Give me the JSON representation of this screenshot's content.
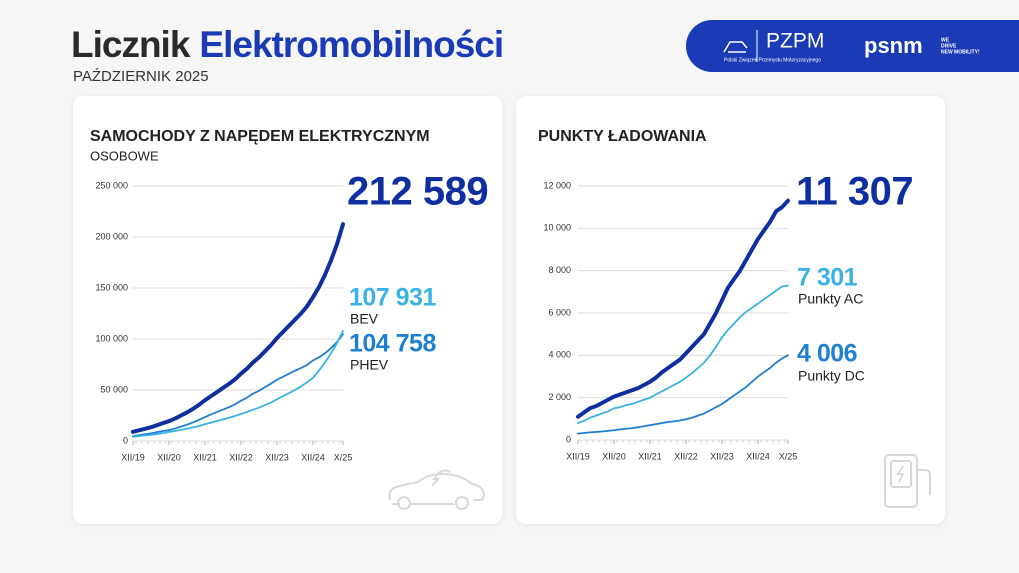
{
  "header": {
    "title_1": "Licznik",
    "title_2": "Elektromobilności",
    "date": "PAŹDZIERNIK 2025"
  },
  "logos": {
    "pzpm": "PZPM",
    "pzpm_full": "Polski Związek Przemysłu Motoryzacyjnego",
    "psnm": "psnm",
    "psnm_tagline": [
      "WE",
      "DRIVE",
      "NEW MOBILITY!"
    ]
  },
  "chart_data": [
    {
      "type": "line",
      "title": "SAMOCHODY Z NAPĘDEM ELEKTRYCZNYM",
      "subtitle": "OSOBOWE",
      "categories": [
        "XII/19",
        null,
        null,
        null,
        null,
        null,
        "XII/20",
        null,
        null,
        null,
        null,
        null,
        "XII/21",
        null,
        null,
        null,
        null,
        null,
        "XII/22",
        null,
        null,
        null,
        null,
        null,
        "XII/23",
        null,
        null,
        null,
        null,
        null,
        "XII/24",
        null,
        null,
        null,
        null,
        "X/25"
      ],
      "ylim": [
        0,
        250000
      ],
      "yticks": [
        0,
        {
          "value": 50000,
          "label": "50 000"
        },
        {
          "value": 100000,
          "label": "100 000"
        },
        {
          "value": 150000,
          "label": "150 000"
        },
        {
          "value": 200000,
          "label": "200 000"
        },
        {
          "value": 250000,
          "label": "250 000"
        }
      ],
      "grid": true,
      "series": [
        {
          "color": "#0f2fa0",
          "values": [
            9000,
            10500,
            12000,
            13500,
            15500,
            17500,
            19500,
            22000,
            25000,
            28000,
            31500,
            35500,
            40000,
            44000,
            48000,
            52000,
            56000,
            60500,
            66000,
            71000,
            77000,
            82000,
            88000,
            94000,
            101000,
            107000,
            113000,
            119000,
            125000,
            132000,
            141000,
            151000,
            163000,
            177000,
            193000,
            212589
          ],
          "value_labels": [
            null,
            null,
            null,
            null,
            null,
            null,
            null,
            null,
            null,
            null,
            null,
            null,
            null,
            null,
            null,
            null,
            null,
            null,
            null,
            null,
            null,
            null,
            null,
            null,
            null,
            null,
            null,
            null,
            null,
            null,
            null,
            null,
            null,
            null,
            null,
            "212 589"
          ]
        },
        {
          "name": "BEV",
          "color": "#3ab2e4",
          "values": [
            4200,
            4800,
            5400,
            6000,
            6800,
            7700,
            8800,
            9800,
            10900,
            12000,
            13300,
            14700,
            16500,
            18000,
            19600,
            21200,
            22800,
            24500,
            26500,
            28500,
            30600,
            32800,
            35200,
            37700,
            41000,
            44000,
            47000,
            50000,
            53500,
            57500,
            62000,
            69000,
            77000,
            86000,
            96000,
            107931
          ],
          "value_labels": [
            null,
            null,
            null,
            null,
            null,
            null,
            null,
            null,
            null,
            null,
            null,
            null,
            null,
            null,
            null,
            null,
            null,
            null,
            null,
            null,
            null,
            null,
            null,
            null,
            null,
            null,
            null,
            null,
            null,
            null,
            null,
            null,
            null,
            null,
            null,
            "107 931"
          ]
        },
        {
          "name": "PHEV",
          "color": "#1f7fd2",
          "values": [
            4800,
            5700,
            6600,
            7500,
            8700,
            9800,
            10700,
            12200,
            14100,
            16000,
            18200,
            20800,
            23500,
            26000,
            28400,
            30800,
            33200,
            36000,
            39500,
            42500,
            46400,
            49200,
            52800,
            56300,
            60000,
            63000,
            66000,
            69000,
            71500,
            74500,
            79000,
            82000,
            86000,
            91000,
            97000,
            104758
          ],
          "value_labels": [
            null,
            null,
            null,
            null,
            null,
            null,
            null,
            null,
            null,
            null,
            null,
            null,
            null,
            null,
            null,
            null,
            null,
            null,
            null,
            null,
            null,
            null,
            null,
            null,
            null,
            null,
            null,
            null,
            null,
            null,
            null,
            null,
            null,
            null,
            null,
            "104 758"
          ]
        }
      ]
    },
    {
      "type": "line",
      "title": "PUNKTY ŁADOWANIA",
      "categories": [
        "XII/19",
        null,
        null,
        null,
        null,
        null,
        "XII/20",
        null,
        null,
        null,
        null,
        null,
        "XII/21",
        null,
        null,
        null,
        null,
        null,
        "XII/22",
        null,
        null,
        null,
        null,
        null,
        "XII/23",
        null,
        null,
        null,
        null,
        null,
        "XII/24",
        null,
        null,
        null,
        null,
        "X/25"
      ],
      "ylim": [
        0,
        12000
      ],
      "yticks": [
        0,
        {
          "value": 2000,
          "label": "2 000"
        },
        {
          "value": 4000,
          "label": "4 000"
        },
        {
          "value": 6000,
          "label": "6 000"
        },
        {
          "value": 8000,
          "label": "8 000"
        },
        {
          "value": 10000,
          "label": "10 000"
        },
        {
          "value": 12000,
          "label": "12 000"
        }
      ],
      "grid": true,
      "series": [
        {
          "color": "#0f2fa0",
          "values": [
            1100,
            1300,
            1500,
            1600,
            1750,
            1900,
            2050,
            2150,
            2250,
            2350,
            2450,
            2600,
            2750,
            2950,
            3200,
            3400,
            3600,
            3800,
            4100,
            4400,
            4700,
            5000,
            5500,
            6000,
            6600,
            7200,
            7600,
            8000,
            8500,
            9000,
            9500,
            9900,
            10300,
            10800,
            11000,
            11307
          ],
          "value_labels": [
            null,
            null,
            null,
            null,
            null,
            null,
            null,
            null,
            null,
            null,
            null,
            null,
            null,
            null,
            null,
            null,
            null,
            null,
            null,
            null,
            null,
            null,
            null,
            null,
            null,
            null,
            null,
            null,
            null,
            null,
            null,
            null,
            null,
            null,
            null,
            "11 307"
          ]
        },
        {
          "name": "Punkty AC",
          "color": "#3ab2e4",
          "values": [
            800,
            900,
            1050,
            1150,
            1250,
            1350,
            1500,
            1550,
            1650,
            1700,
            1800,
            1900,
            2000,
            2150,
            2300,
            2450,
            2600,
            2750,
            2950,
            3150,
            3400,
            3650,
            4000,
            4400,
            4850,
            5200,
            5500,
            5800,
            6050,
            6250,
            6450,
            6650,
            6850,
            7050,
            7250,
            7301
          ],
          "value_labels": [
            null,
            null,
            null,
            null,
            null,
            null,
            null,
            null,
            null,
            null,
            null,
            null,
            null,
            null,
            null,
            null,
            null,
            null,
            null,
            null,
            null,
            null,
            null,
            null,
            null,
            null,
            null,
            null,
            null,
            null,
            null,
            null,
            null,
            null,
            null,
            "7 301"
          ]
        },
        {
          "name": "Punkty DC",
          "color": "#1f7fd2",
          "values": [
            300,
            330,
            360,
            380,
            400,
            430,
            460,
            500,
            530,
            560,
            600,
            650,
            700,
            750,
            800,
            850,
            880,
            920,
            980,
            1050,
            1150,
            1250,
            1400,
            1550,
            1700,
            1900,
            2100,
            2300,
            2500,
            2750,
            3000,
            3200,
            3400,
            3650,
            3850,
            4006
          ],
          "value_labels": [
            null,
            null,
            null,
            null,
            null,
            null,
            null,
            null,
            null,
            null,
            null,
            null,
            null,
            null,
            null,
            null,
            null,
            null,
            null,
            null,
            null,
            null,
            null,
            null,
            null,
            null,
            null,
            null,
            null,
            null,
            null,
            null,
            null,
            null,
            null,
            "4 006"
          ]
        }
      ]
    }
  ]
}
